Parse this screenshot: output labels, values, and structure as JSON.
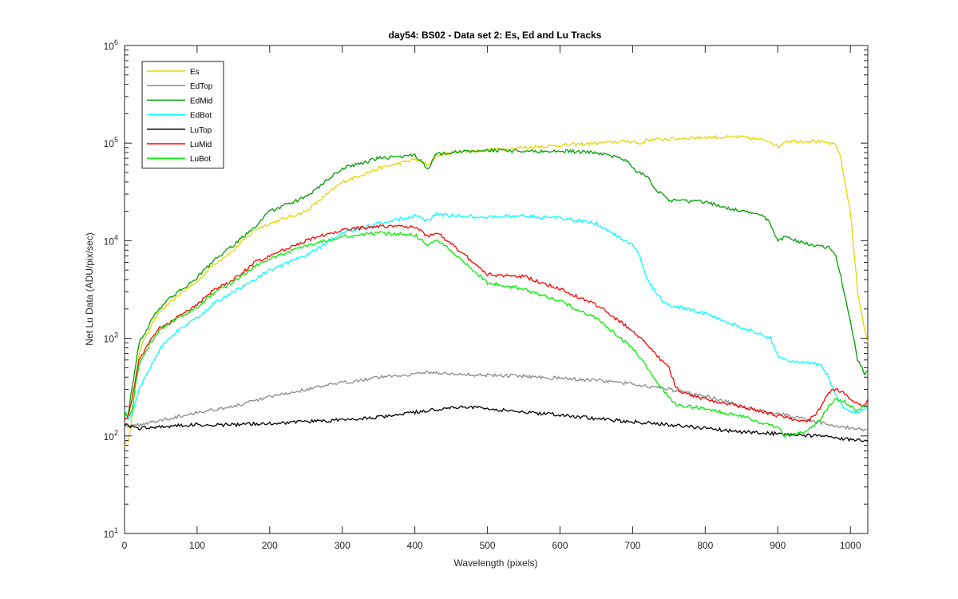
{
  "chart_data": {
    "type": "line",
    "title": "day54: BS02 - Data set 2: Es, Ed and Lu Tracks",
    "xlabel": "Wavelength (pixels)",
    "ylabel": "Net Lu Data (ADU/pix/sec)",
    "xlim": [
      0,
      1024
    ],
    "ylim": [
      10,
      1000000
    ],
    "yscale": "log",
    "grid": false,
    "legend_position": "top-left",
    "x_ticks": [
      "0",
      "100",
      "200",
      "300",
      "400",
      "500",
      "600",
      "700",
      "800",
      "900",
      "1000"
    ],
    "y_ticks": [
      {
        "value": 10,
        "base": "10",
        "exp": "1"
      },
      {
        "value": 100,
        "base": "10",
        "exp": "2"
      },
      {
        "value": 1000,
        "base": "10",
        "exp": "3"
      },
      {
        "value": 10000,
        "base": "10",
        "exp": "4"
      },
      {
        "value": 100000,
        "base": "10",
        "exp": "5"
      },
      {
        "value": 1000000,
        "base": "10",
        "exp": "6"
      }
    ],
    "series": [
      {
        "name": "Es",
        "color": "#e6d600",
        "x": [
          0,
          5,
          10,
          20,
          30,
          40,
          50,
          60,
          80,
          100,
          120,
          150,
          180,
          200,
          250,
          300,
          350,
          400,
          418,
          430,
          450,
          500,
          550,
          600,
          650,
          700,
          710,
          720,
          750,
          800,
          850,
          890,
          900,
          910,
          950,
          970,
          980,
          985,
          990,
          1000,
          1010,
          1020,
          1024
        ],
        "y": [
          80,
          90,
          150,
          700,
          1100,
          1500,
          1900,
          2200,
          3000,
          3800,
          5500,
          8000,
          13000,
          15000,
          20000,
          40000,
          55000,
          68000,
          60000,
          75000,
          80000,
          85000,
          90000,
          95000,
          100000,
          105000,
          98000,
          108000,
          110000,
          115000,
          115000,
          105000,
          90000,
          105000,
          105000,
          100000,
          95000,
          80000,
          50000,
          20000,
          3000,
          1200,
          900
        ]
      },
      {
        "name": "EdTop",
        "color": "#8c8c8c",
        "x": [
          0,
          10,
          30,
          60,
          100,
          150,
          200,
          250,
          300,
          350,
          400,
          420,
          450,
          500,
          550,
          600,
          650,
          700,
          750,
          800,
          850,
          900,
          950,
          1000,
          1024
        ],
        "y": [
          130,
          125,
          135,
          150,
          175,
          200,
          250,
          300,
          350,
          400,
          430,
          450,
          430,
          420,
          410,
          390,
          370,
          340,
          300,
          260,
          200,
          170,
          140,
          120,
          115
        ]
      },
      {
        "name": "EdMid",
        "color": "#00a000",
        "x": [
          0,
          5,
          10,
          20,
          30,
          40,
          50,
          60,
          80,
          100,
          120,
          150,
          180,
          200,
          250,
          300,
          350,
          400,
          418,
          430,
          450,
          500,
          550,
          600,
          650,
          690,
          700,
          710,
          720,
          730,
          750,
          800,
          850,
          880,
          890,
          895,
          900,
          910,
          950,
          970,
          980,
          985,
          990,
          1000,
          1010,
          1020,
          1024
        ],
        "y": [
          160,
          170,
          300,
          900,
          1200,
          1700,
          2100,
          2500,
          3200,
          4200,
          6000,
          9000,
          14000,
          20000,
          28000,
          55000,
          70000,
          75000,
          55000,
          78000,
          80000,
          85000,
          82000,
          83000,
          80000,
          68000,
          55000,
          50000,
          45000,
          35000,
          26000,
          25000,
          20000,
          18000,
          15000,
          12000,
          10000,
          11000,
          8800,
          8500,
          7000,
          5000,
          3200,
          1500,
          600,
          430,
          470
        ]
      },
      {
        "name": "EdBot",
        "color": "#00ffff",
        "x": [
          0,
          5,
          10,
          20,
          30,
          40,
          50,
          60,
          80,
          100,
          120,
          150,
          180,
          200,
          250,
          300,
          350,
          400,
          418,
          430,
          450,
          500,
          550,
          600,
          650,
          700,
          710,
          720,
          740,
          750,
          800,
          850,
          890,
          900,
          910,
          950,
          960,
          970,
          980,
          990,
          1000,
          1010,
          1020,
          1024
        ],
        "y": [
          190,
          150,
          160,
          300,
          420,
          600,
          800,
          1000,
          1300,
          1600,
          2200,
          3000,
          4000,
          5000,
          7000,
          12000,
          15000,
          18000,
          16000,
          19000,
          18000,
          17500,
          18000,
          17000,
          15000,
          9000,
          7000,
          4000,
          2500,
          2200,
          1800,
          1300,
          1000,
          650,
          600,
          550,
          520,
          400,
          260,
          200,
          180,
          170,
          190,
          200
        ]
      },
      {
        "name": "LuTop",
        "color": "#000000",
        "x": [
          0,
          20,
          50,
          100,
          150,
          200,
          250,
          300,
          350,
          400,
          450,
          470,
          500,
          550,
          600,
          650,
          700,
          750,
          800,
          850,
          900,
          950,
          1000,
          1024
        ],
        "y": [
          130,
          120,
          125,
          130,
          130,
          135,
          140,
          145,
          155,
          175,
          195,
          200,
          190,
          175,
          165,
          150,
          140,
          130,
          120,
          110,
          105,
          100,
          92,
          88
        ]
      },
      {
        "name": "LuMid",
        "color": "#ff0000",
        "x": [
          0,
          5,
          10,
          20,
          30,
          40,
          50,
          60,
          80,
          100,
          120,
          150,
          180,
          200,
          250,
          300,
          350,
          400,
          418,
          430,
          450,
          480,
          500,
          550,
          600,
          650,
          700,
          750,
          760,
          770,
          800,
          850,
          900,
          940,
          950,
          960,
          970,
          980,
          990,
          1000,
          1010,
          1020,
          1024
        ],
        "y": [
          150,
          160,
          230,
          600,
          800,
          1100,
          1300,
          1400,
          1800,
          2200,
          3000,
          4000,
          6000,
          7000,
          10000,
          13000,
          14000,
          14000,
          11000,
          12000,
          9500,
          6000,
          4500,
          4300,
          3200,
          2200,
          1200,
          500,
          310,
          270,
          240,
          200,
          160,
          140,
          160,
          200,
          280,
          300,
          280,
          240,
          210,
          200,
          240
        ]
      },
      {
        "name": "LuBot",
        "color": "#00ee00",
        "x": [
          0,
          5,
          10,
          20,
          30,
          40,
          50,
          60,
          80,
          100,
          120,
          150,
          180,
          200,
          250,
          300,
          350,
          400,
          418,
          430,
          450,
          480,
          500,
          550,
          600,
          650,
          700,
          740,
          750,
          760,
          800,
          850,
          900,
          910,
          940,
          960,
          970,
          980,
          990,
          1000,
          1010,
          1024
        ],
        "y": [
          170,
          160,
          180,
          550,
          750,
          1000,
          1250,
          1400,
          1700,
          2100,
          2800,
          3800,
          5500,
          6500,
          9000,
          11000,
          12000,
          11500,
          9000,
          10000,
          8000,
          5000,
          3700,
          3200,
          2400,
          1600,
          800,
          310,
          250,
          210,
          190,
          160,
          120,
          100,
          110,
          150,
          200,
          240,
          230,
          200,
          180,
          210
        ]
      }
    ]
  }
}
